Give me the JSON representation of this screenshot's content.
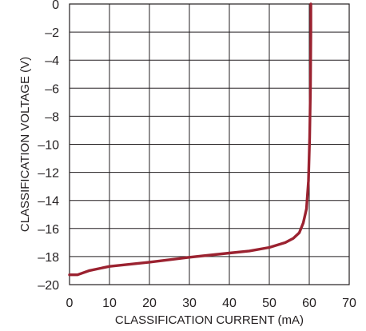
{
  "chart_data": {
    "type": "line",
    "title": "",
    "xlabel": "CLASSIFICATION CURRENT (mA)",
    "ylabel": "CLASSIFICATION VOLTAGE (V)",
    "xlim": [
      0,
      70
    ],
    "ylim": [
      -20,
      0
    ],
    "x_ticks": [
      "0",
      "10",
      "20",
      "30",
      "40",
      "50",
      "60",
      "70"
    ],
    "y_ticks": [
      "0",
      "–2",
      "–4",
      "–6",
      "–8",
      "–10",
      "–12",
      "–14",
      "–16",
      "–18",
      "–20"
    ],
    "x_tick_values": [
      0,
      10,
      20,
      30,
      40,
      50,
      60,
      70
    ],
    "y_tick_values": [
      0,
      -2,
      -4,
      -6,
      -8,
      -10,
      -12,
      -14,
      -16,
      -18,
      -20
    ],
    "grid": true,
    "color": "#9b2230",
    "series": [
      {
        "x": [
          0,
          2,
          5,
          10,
          20,
          30,
          40,
          45,
          50,
          54,
          56,
          57.5,
          58.5,
          59.3,
          59.8,
          60.1,
          60.3,
          60.4,
          60.4
        ],
        "y": [
          -19.3,
          -19.3,
          -19.0,
          -18.7,
          -18.4,
          -18.05,
          -17.75,
          -17.6,
          -17.35,
          -17.0,
          -16.7,
          -16.3,
          -15.6,
          -14.6,
          -12.6,
          -9.5,
          -6.0,
          -2.0,
          0
        ]
      }
    ]
  }
}
